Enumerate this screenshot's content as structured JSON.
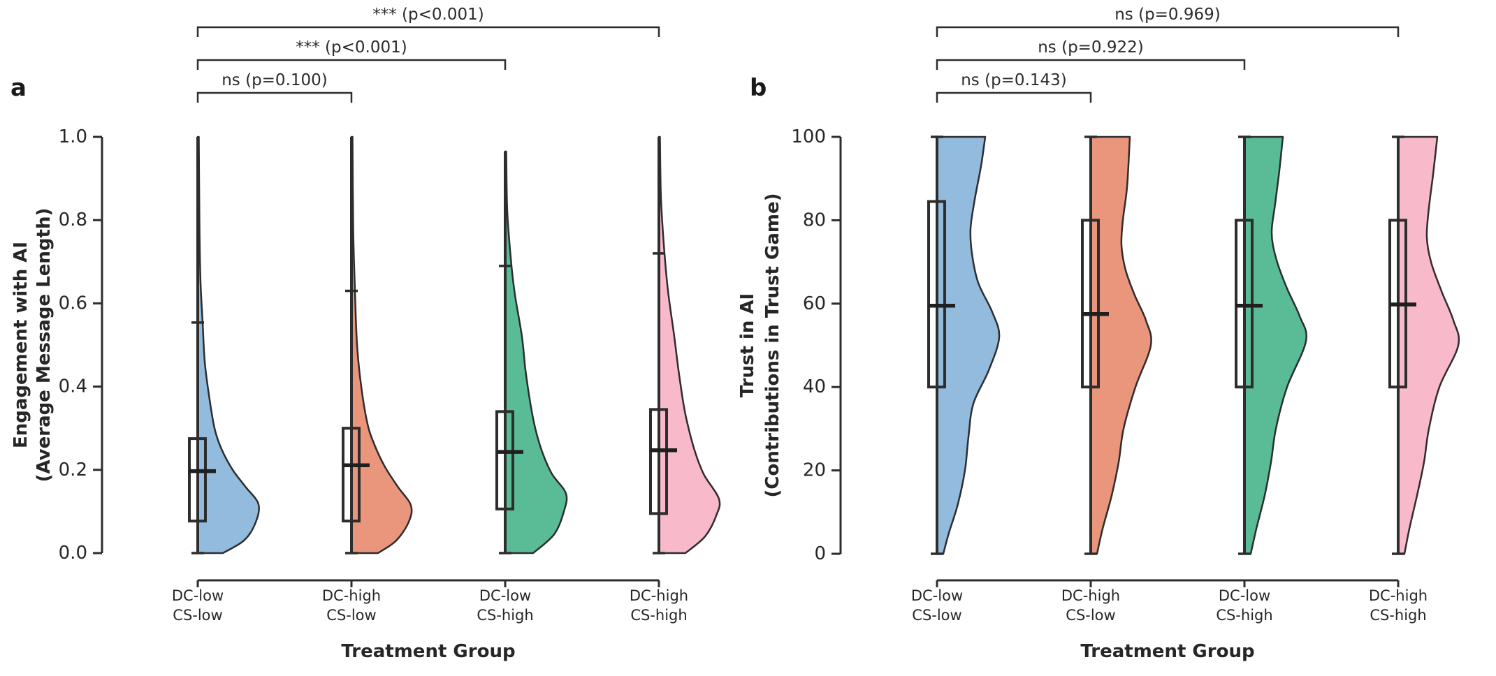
{
  "figure": {
    "background": "#ffffff",
    "stroke_color": "#2d2d2d",
    "text_color": "#262626"
  },
  "chart_data": [
    {
      "panel": "a",
      "type": "half_violin_box",
      "ylabel_line1": "Engagement with AI",
      "ylabel_line2": "(Average Message Length)",
      "xlabel": "Treatment Group",
      "ylim": [
        0.0,
        1.0
      ],
      "yticks": [
        0.0,
        0.2,
        0.4,
        0.6,
        0.8,
        1.0
      ],
      "ytick_labels": [
        "0.0",
        "0.2",
        "0.4",
        "0.6",
        "0.8",
        "1.0"
      ],
      "categories": [
        [
          "DC-low",
          "CS-low"
        ],
        [
          "DC-high",
          "CS-low"
        ],
        [
          "DC-low",
          "CS-high"
        ],
        [
          "DC-high",
          "CS-high"
        ]
      ],
      "colors": [
        "#92BBDE",
        "#E9967C",
        "#5ABC96",
        "#F8B9CB"
      ],
      "stats": [
        {
          "group": "DC-low CS-low",
          "whisker_low": 0.0,
          "q1": 0.077,
          "median": 0.197,
          "q3": 0.275,
          "whisker_high": 0.554,
          "violin_min": 0.0,
          "violin_max": 1.0
        },
        {
          "group": "DC-high CS-low",
          "whisker_low": 0.0,
          "q1": 0.077,
          "median": 0.211,
          "q3": 0.3,
          "whisker_high": 0.63,
          "violin_min": 0.0,
          "violin_max": 1.0
        },
        {
          "group": "DC-low CS-high",
          "whisker_low": 0.0,
          "q1": 0.106,
          "median": 0.243,
          "q3": 0.34,
          "whisker_high": 0.69,
          "violin_min": 0.0,
          "violin_max": 0.965
        },
        {
          "group": "DC-high CS-high",
          "whisker_low": 0.0,
          "q1": 0.095,
          "median": 0.247,
          "q3": 0.345,
          "whisker_high": 0.72,
          "violin_min": 0.0,
          "violin_max": 1.0
        }
      ],
      "violin_profiles": [
        [
          [
            0,
            36
          ],
          [
            0.03,
            66
          ],
          [
            0.07,
            82
          ],
          [
            0.117,
            87
          ],
          [
            0.16,
            68
          ],
          [
            0.2,
            50
          ],
          [
            0.25,
            34
          ],
          [
            0.3,
            24
          ],
          [
            0.38,
            16
          ],
          [
            0.46,
            10
          ],
          [
            0.554,
            7
          ],
          [
            0.65,
            4
          ],
          [
            0.78,
            2.5
          ],
          [
            1.0,
            1.5
          ]
        ],
        [
          [
            0,
            38
          ],
          [
            0.03,
            64
          ],
          [
            0.075,
            82
          ],
          [
            0.115,
            85
          ],
          [
            0.16,
            66
          ],
          [
            0.21,
            47
          ],
          [
            0.26,
            33
          ],
          [
            0.31,
            23
          ],
          [
            0.4,
            14
          ],
          [
            0.5,
            8
          ],
          [
            0.63,
            5
          ],
          [
            0.78,
            2.5
          ],
          [
            1.0,
            1.5
          ]
        ],
        [
          [
            0,
            40
          ],
          [
            0.045,
            70
          ],
          [
            0.1,
            84
          ],
          [
            0.143,
            87
          ],
          [
            0.19,
            67
          ],
          [
            0.243,
            53
          ],
          [
            0.3,
            43
          ],
          [
            0.36,
            36
          ],
          [
            0.44,
            29
          ],
          [
            0.52,
            24
          ],
          [
            0.62,
            14
          ],
          [
            0.69,
            9
          ],
          [
            0.82,
            3
          ],
          [
            0.965,
            1.5
          ]
        ],
        [
          [
            0,
            38
          ],
          [
            0.04,
            66
          ],
          [
            0.09,
            82
          ],
          [
            0.13,
            86
          ],
          [
            0.19,
            64
          ],
          [
            0.247,
            51
          ],
          [
            0.31,
            41
          ],
          [
            0.36,
            35
          ],
          [
            0.44,
            28
          ],
          [
            0.52,
            22
          ],
          [
            0.63,
            13
          ],
          [
            0.72,
            8
          ],
          [
            0.85,
            3
          ],
          [
            1.0,
            1.5
          ]
        ]
      ],
      "significance": [
        {
          "from": 0,
          "to": 1,
          "label": "ns (p=0.100)"
        },
        {
          "from": 0,
          "to": 2,
          "label": "*** (p<0.001)"
        },
        {
          "from": 0,
          "to": 3,
          "label": "*** (p<0.001)"
        }
      ]
    },
    {
      "panel": "b",
      "type": "half_violin_box",
      "ylabel_line1": "Trust in AI",
      "ylabel_line2": "(Contributions in Trust Game)",
      "xlabel": "Treatment Group",
      "ylim": [
        0,
        100
      ],
      "yticks": [
        0,
        20,
        40,
        60,
        80,
        100
      ],
      "ytick_labels": [
        "0",
        "20",
        "40",
        "60",
        "80",
        "100"
      ],
      "categories": [
        [
          "DC-low",
          "CS-low"
        ],
        [
          "DC-high",
          "CS-low"
        ],
        [
          "DC-low",
          "CS-high"
        ],
        [
          "DC-high",
          "CS-high"
        ]
      ],
      "colors": [
        "#92BBDE",
        "#E9967C",
        "#5ABC96",
        "#F8B9CB"
      ],
      "stats": [
        {
          "group": "DC-low CS-low",
          "whisker_low": 0,
          "q1": 40,
          "median": 59.5,
          "q3": 84.5,
          "whisker_high": 100,
          "violin_min": 0,
          "violin_max": 100
        },
        {
          "group": "DC-high CS-low",
          "whisker_low": 0,
          "q1": 40,
          "median": 57.5,
          "q3": 80.0,
          "whisker_high": 100,
          "violin_min": 0,
          "violin_max": 100
        },
        {
          "group": "DC-low CS-high",
          "whisker_low": 0,
          "q1": 40,
          "median": 59.5,
          "q3": 80.0,
          "whisker_high": 100,
          "violin_min": 0,
          "violin_max": 100
        },
        {
          "group": "DC-high CS-high",
          "whisker_low": 0,
          "q1": 40,
          "median": 59.8,
          "q3": 80.0,
          "whisker_high": 100,
          "violin_min": 0,
          "violin_max": 100
        }
      ],
      "violin_profiles": [
        [
          [
            0,
            9
          ],
          [
            5,
            17
          ],
          [
            12,
            30
          ],
          [
            20,
            40
          ],
          [
            28,
            45
          ],
          [
            36,
            52
          ],
          [
            44,
            74
          ],
          [
            52,
            89
          ],
          [
            58,
            79
          ],
          [
            65,
            59
          ],
          [
            72,
            50
          ],
          [
            78,
            48
          ],
          [
            85,
            54
          ],
          [
            93,
            63
          ],
          [
            100,
            69
          ]
        ],
        [
          [
            0,
            9
          ],
          [
            6,
            17
          ],
          [
            14,
            30
          ],
          [
            22,
            40
          ],
          [
            30,
            47
          ],
          [
            40,
            64
          ],
          [
            50,
            86
          ],
          [
            56,
            79
          ],
          [
            62,
            63
          ],
          [
            68,
            50
          ],
          [
            74,
            44
          ],
          [
            80,
            46
          ],
          [
            88,
            52
          ],
          [
            100,
            56
          ]
        ],
        [
          [
            0,
            9
          ],
          [
            6,
            17
          ],
          [
            14,
            29
          ],
          [
            22,
            38
          ],
          [
            30,
            45
          ],
          [
            40,
            61
          ],
          [
            51,
            88
          ],
          [
            57,
            79
          ],
          [
            64,
            60
          ],
          [
            71,
            45
          ],
          [
            77,
            39
          ],
          [
            84,
            44
          ],
          [
            92,
            50
          ],
          [
            100,
            55
          ]
        ],
        [
          [
            0,
            9
          ],
          [
            6,
            16
          ],
          [
            14,
            27
          ],
          [
            22,
            37
          ],
          [
            30,
            44
          ],
          [
            40,
            59
          ],
          [
            50,
            86
          ],
          [
            56,
            79
          ],
          [
            63,
            62
          ],
          [
            70,
            47
          ],
          [
            76,
            41
          ],
          [
            83,
            44
          ],
          [
            91,
            50
          ],
          [
            100,
            56
          ]
        ]
      ],
      "significance": [
        {
          "from": 0,
          "to": 1,
          "label": "ns (p=0.143)"
        },
        {
          "from": 0,
          "to": 2,
          "label": "ns (p=0.922)"
        },
        {
          "from": 0,
          "to": 3,
          "label": "ns (p=0.969)"
        }
      ]
    }
  ],
  "panel_letters": [
    "a",
    "b"
  ]
}
